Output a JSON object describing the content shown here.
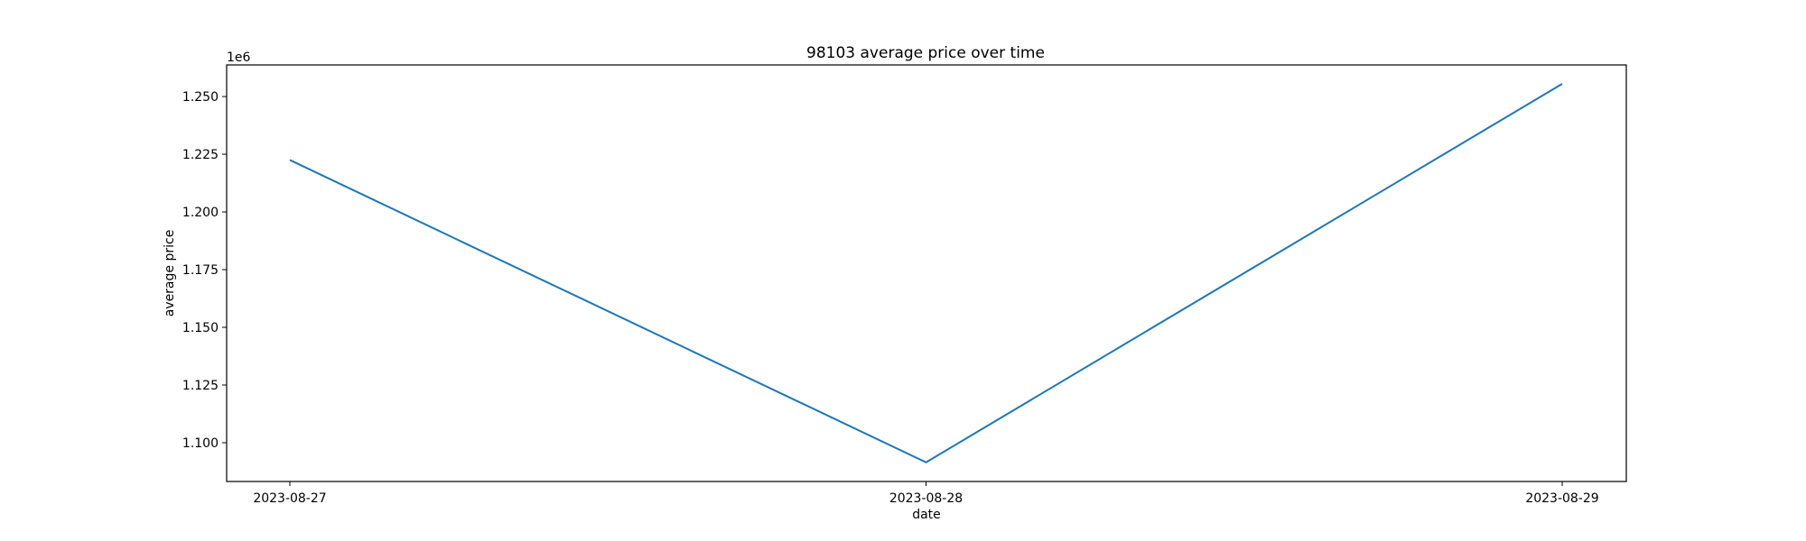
{
  "chart_data": {
    "type": "line",
    "title": "98103 average price over time",
    "xlabel": "date",
    "ylabel": "average price",
    "y_offset_label": "1e6",
    "x": [
      "2023-08-27",
      "2023-08-28",
      "2023-08-29"
    ],
    "series": [
      {
        "values": [
          1222500,
          1091500,
          1255500
        ],
        "color": "#1f77b4"
      }
    ],
    "xticks": [
      "2023-08-27",
      "2023-08-28",
      "2023-08-29"
    ],
    "yticks": [
      {
        "value": 1100000,
        "label": "1.100"
      },
      {
        "value": 1125000,
        "label": "1.125"
      },
      {
        "value": 1150000,
        "label": "1.150"
      },
      {
        "value": 1175000,
        "label": "1.175"
      },
      {
        "value": 1200000,
        "label": "1.200"
      },
      {
        "value": 1225000,
        "label": "1.225"
      },
      {
        "value": 1250000,
        "label": "1.250"
      }
    ],
    "ylim": [
      1083200,
      1263700
    ],
    "grid": false
  }
}
